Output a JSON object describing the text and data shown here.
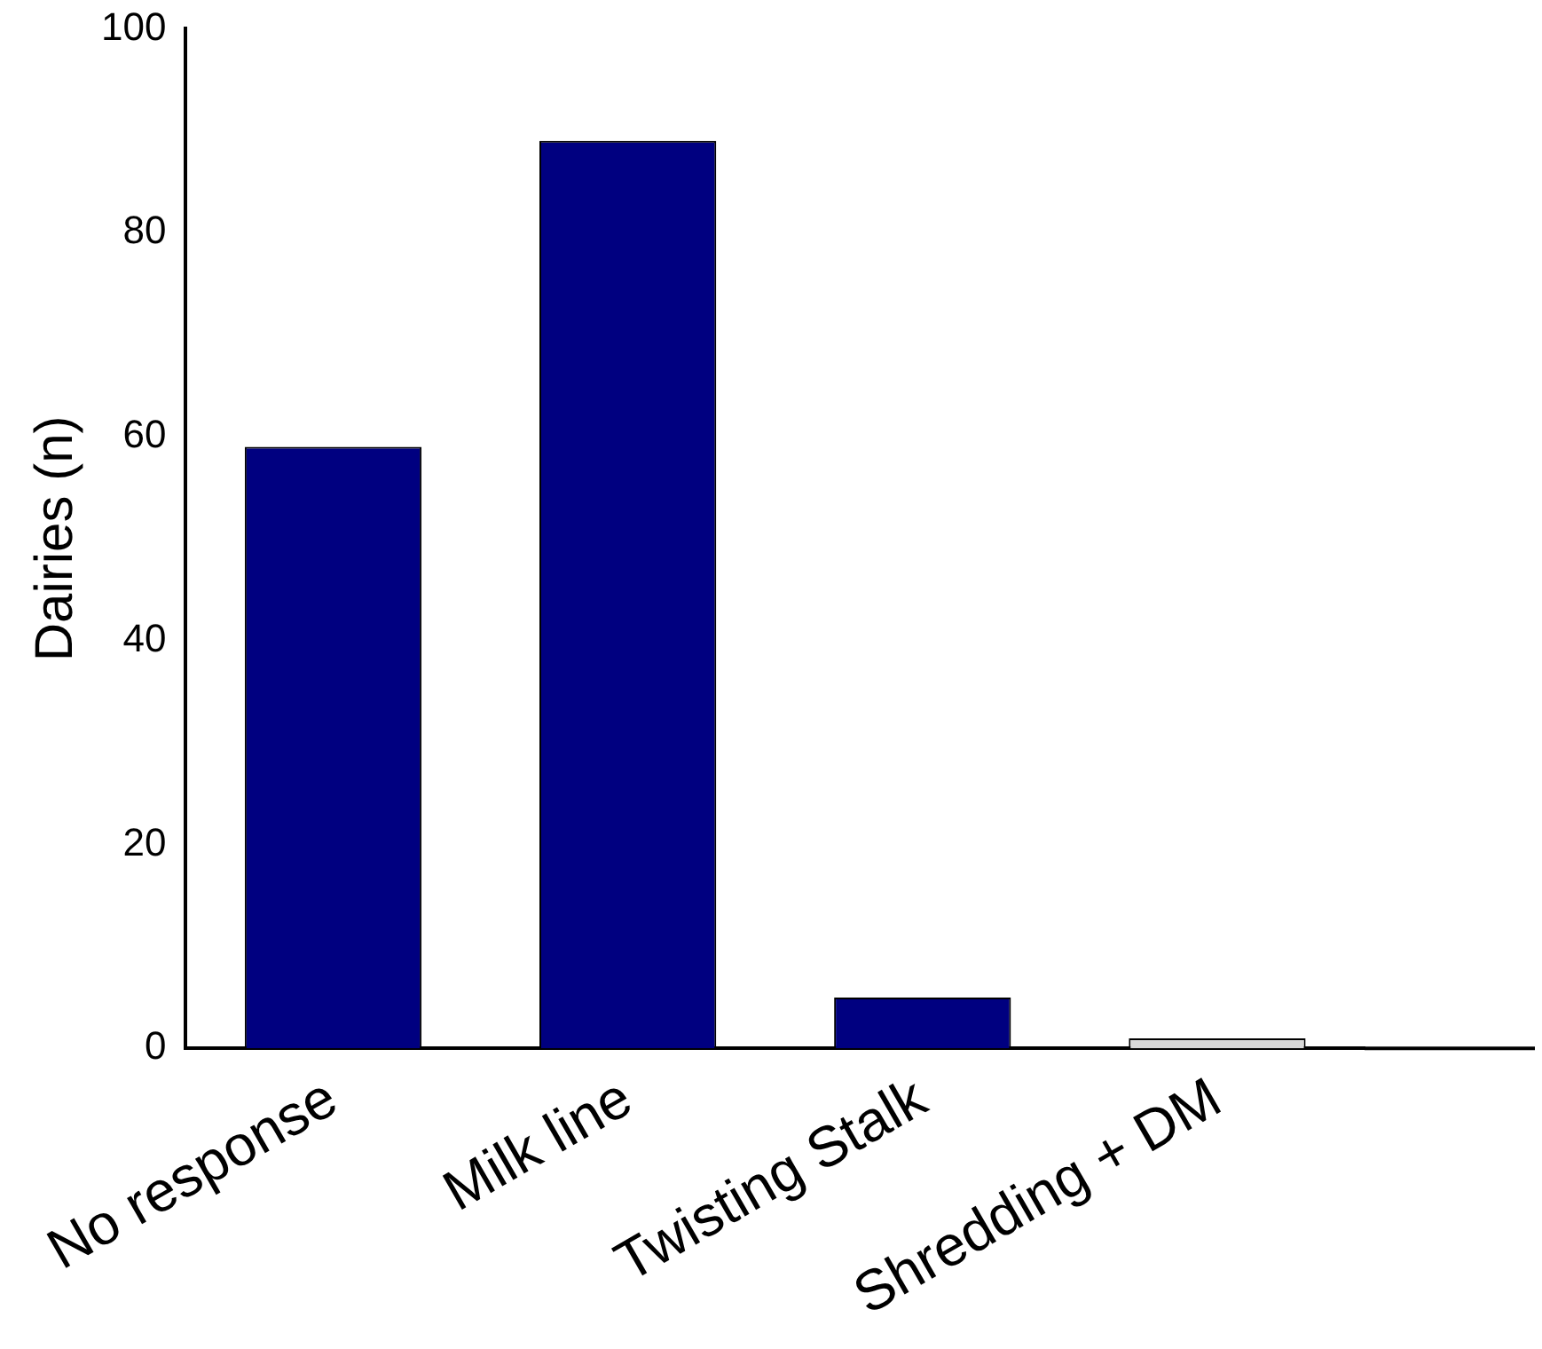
{
  "chart_data": {
    "type": "bar",
    "ylabel": "Dairies (n)",
    "categories": [
      "No response",
      "Milk line",
      "Twisting Stalk",
      "Shredding + DM"
    ],
    "values": [
      59,
      89,
      5,
      1
    ],
    "colors": [
      "#000080",
      "#000080",
      "#000080",
      "#d9d9d9"
    ],
    "ylim": [
      0,
      100
    ],
    "yticks": [
      0,
      20,
      40,
      60,
      80,
      100
    ],
    "grid": false,
    "legend": false
  }
}
